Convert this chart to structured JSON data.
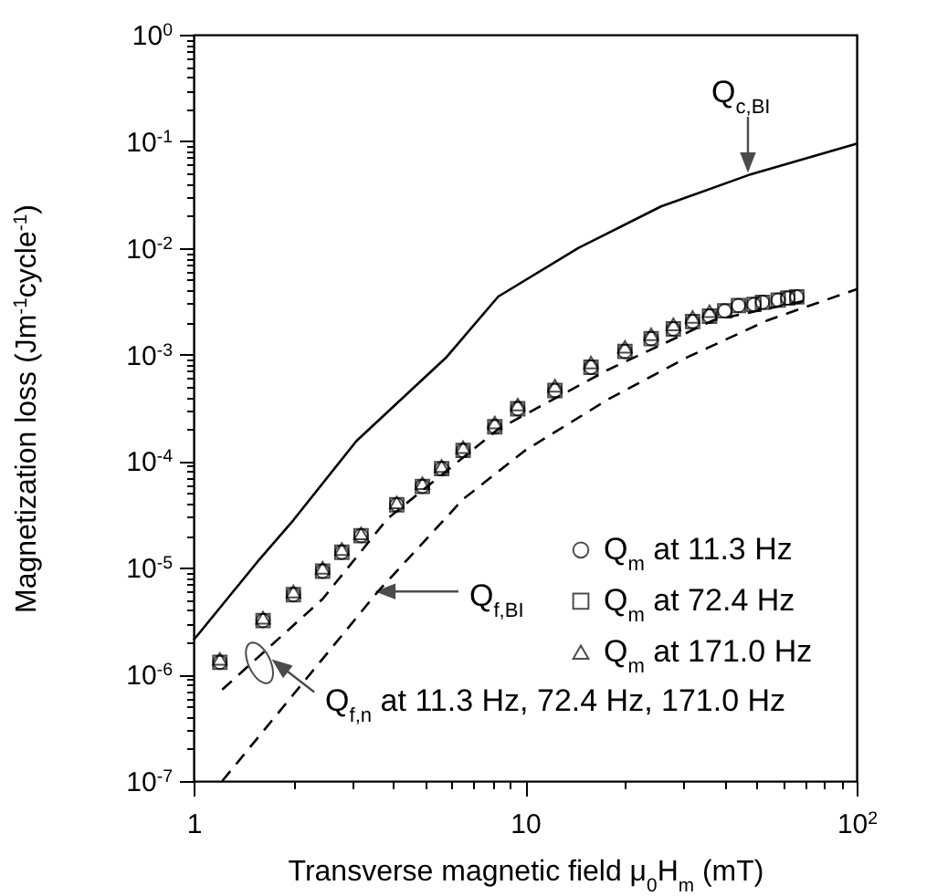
{
  "chart_data": {
    "type": "scatter",
    "xlabel": "Transverse magnetic field μ$_{0}$H$_{m}$ (mT)",
    "ylabel": "Magnetization loss (Jm$^{-1}$cycle$^{-1}$)",
    "log": "xy",
    "xlim": [
      1,
      100
    ],
    "ylim": [
      1e-07,
      1
    ],
    "xticks": [
      {
        "value": 1,
        "label": "1"
      },
      {
        "value": 2,
        "label": null
      },
      {
        "value": 3,
        "label": null
      },
      {
        "value": 4,
        "label": null
      },
      {
        "value": 5,
        "label": null
      },
      {
        "value": 6,
        "label": null
      },
      {
        "value": 7,
        "label": null
      },
      {
        "value": 8,
        "label": null
      },
      {
        "value": 9,
        "label": null
      },
      {
        "value": 10,
        "label": "10"
      },
      {
        "value": 20,
        "label": null
      },
      {
        "value": 30,
        "label": null
      },
      {
        "value": 40,
        "label": null
      },
      {
        "value": 50,
        "label": null
      },
      {
        "value": 60,
        "label": null
      },
      {
        "value": 70,
        "label": null
      },
      {
        "value": 80,
        "label": null
      },
      {
        "value": 90,
        "label": null
      },
      {
        "value": 100,
        "label": "10$^{2}$"
      }
    ],
    "yticks": [
      {
        "value": 1e-07,
        "label": "10$^{-7}$"
      },
      {
        "value": 2e-07,
        "label": null
      },
      {
        "value": 3e-07,
        "label": null
      },
      {
        "value": 4e-07,
        "label": null
      },
      {
        "value": 5e-07,
        "label": null
      },
      {
        "value": 6e-07,
        "label": null
      },
      {
        "value": 7e-07,
        "label": null
      },
      {
        "value": 8e-07,
        "label": null
      },
      {
        "value": 9e-07,
        "label": null
      },
      {
        "value": 1e-06,
        "label": "10$^{-6}$"
      },
      {
        "value": 2e-06,
        "label": null
      },
      {
        "value": 3e-06,
        "label": null
      },
      {
        "value": 4e-06,
        "label": null
      },
      {
        "value": 5e-06,
        "label": null
      },
      {
        "value": 6e-06,
        "label": null
      },
      {
        "value": 7e-06,
        "label": null
      },
      {
        "value": 8e-06,
        "label": null
      },
      {
        "value": 9e-06,
        "label": null
      },
      {
        "value": 1e-05,
        "label": "10$^{-5}$"
      },
      {
        "value": 2e-05,
        "label": null
      },
      {
        "value": 3e-05,
        "label": null
      },
      {
        "value": 4e-05,
        "label": null
      },
      {
        "value": 5e-05,
        "label": null
      },
      {
        "value": 6e-05,
        "label": null
      },
      {
        "value": 7e-05,
        "label": null
      },
      {
        "value": 8e-05,
        "label": null
      },
      {
        "value": 9e-05,
        "label": null
      },
      {
        "value": 0.0001,
        "label": "10$^{-4}$"
      },
      {
        "value": 0.0002,
        "label": null
      },
      {
        "value": 0.0003,
        "label": null
      },
      {
        "value": 0.0004,
        "label": null
      },
      {
        "value": 0.0005,
        "label": null
      },
      {
        "value": 0.0006,
        "label": null
      },
      {
        "value": 0.0007,
        "label": null
      },
      {
        "value": 0.0008,
        "label": null
      },
      {
        "value": 0.0009,
        "label": null
      },
      {
        "value": 0.001,
        "label": "10$^{-3}$"
      },
      {
        "value": 0.002,
        "label": null
      },
      {
        "value": 0.003,
        "label": null
      },
      {
        "value": 0.004,
        "label": null
      },
      {
        "value": 0.005,
        "label": null
      },
      {
        "value": 0.006,
        "label": null
      },
      {
        "value": 0.007,
        "label": null
      },
      {
        "value": 0.008,
        "label": null
      },
      {
        "value": 0.009,
        "label": null
      },
      {
        "value": 0.01,
        "label": "10$^{-2}$"
      },
      {
        "value": 0.02,
        "label": null
      },
      {
        "value": 0.03,
        "label": null
      },
      {
        "value": 0.04,
        "label": null
      },
      {
        "value": 0.05,
        "label": null
      },
      {
        "value": 0.06,
        "label": null
      },
      {
        "value": 0.07,
        "label": null
      },
      {
        "value": 0.08,
        "label": null
      },
      {
        "value": 0.09,
        "label": null
      },
      {
        "value": 0.1,
        "label": "10$^{-1}$"
      },
      {
        "value": 0.2,
        "label": null
      },
      {
        "value": 0.3,
        "label": null
      },
      {
        "value": 0.4,
        "label": null
      },
      {
        "value": 0.5,
        "label": null
      },
      {
        "value": 0.6,
        "label": null
      },
      {
        "value": 0.7,
        "label": null
      },
      {
        "value": 0.8,
        "label": null
      },
      {
        "value": 0.9,
        "label": null
      },
      {
        "value": 1,
        "label": "10$^{0}$"
      }
    ],
    "legend": "right",
    "series": [
      {
        "name": "Q$_{m}$ at 11.3 Hz",
        "marker": "circle",
        "color": "#000000",
        "x": [
          1.2,
          1.62,
          2.0,
          2.45,
          2.8,
          3.2,
          4.1,
          4.9,
          5.6,
          6.5,
          8.1,
          9.5,
          12.3,
          15.8,
          20,
          24,
          28,
          32,
          36,
          40,
          44,
          49,
          52,
          58,
          62,
          66
        ],
        "values": [
          1.3e-06,
          3.2e-06,
          5.6e-06,
          9.3e-06,
          1.4e-05,
          2e-05,
          3.9e-05,
          5.8e-05,
          8.5e-05,
          0.000126,
          0.00021,
          0.00031,
          0.00046,
          0.00076,
          0.00107,
          0.00141,
          0.00174,
          0.00204,
          0.00229,
          0.00257,
          0.00288,
          0.00295,
          0.00309,
          0.00324,
          0.00339,
          0.00347
        ]
      },
      {
        "name": "Q$_{m}$ at 72.4 Hz",
        "marker": "square",
        "color": "#000000",
        "x": [
          1.2,
          1.62,
          2.0,
          2.45,
          2.8,
          3.2,
          4.1,
          4.9,
          5.6,
          6.5,
          8.1,
          9.5,
          12.3,
          15.8,
          20,
          24,
          28,
          32,
          36,
          40,
          44,
          49,
          52,
          58,
          62,
          66
        ],
        "values": [
          1.3e-06,
          3.2e-06,
          5.6e-06,
          9.3e-06,
          1.4e-05,
          2e-05,
          3.9e-05,
          5.8e-05,
          8.5e-05,
          0.000126,
          0.00021,
          0.00031,
          0.00046,
          0.00076,
          0.00107,
          0.00141,
          0.00174,
          0.00204,
          0.00229,
          0.00257,
          0.00288,
          0.00295,
          0.00309,
          0.00324,
          0.00339,
          0.00347
        ]
      },
      {
        "name": "Q$_{m}$ at 171.0 Hz",
        "marker": "triangle",
        "color": "#000000",
        "x": [
          1.2,
          1.62,
          2.0,
          2.45,
          2.8,
          3.2,
          4.1,
          4.9,
          5.6,
          6.5,
          8.1,
          9.5,
          12.3,
          15.8,
          20,
          24,
          28,
          32,
          36
        ],
        "values": [
          1.4e-06,
          3.4e-06,
          6e-06,
          1e-05,
          1.5e-05,
          2.1e-05,
          4.1e-05,
          6.2e-05,
          9e-05,
          0.000135,
          0.00023,
          0.00034,
          0.00051,
          0.00084,
          0.00118,
          0.00155,
          0.00192,
          0.00225,
          0.00255
        ]
      },
      {
        "type": "line",
        "line_style": "solid",
        "color": "#000000",
        "x": [
          1,
          1.58,
          2,
          3.1,
          5.8,
          8.3,
          14.5,
          25.7,
          47,
          100
        ],
        "values": [
          2.1e-06,
          1.2e-05,
          2.8e-05,
          0.000155,
          0.00095,
          0.0035,
          0.01,
          0.0245,
          0.048,
          0.095
        ]
      },
      {
        "type": "line",
        "line_style": "dashed",
        "color": "#000000",
        "x": [
          1.22,
          2.45,
          3.85,
          8.3,
          17.8,
          37,
          70
        ],
        "values": [
          7.2e-07,
          5.1e-06,
          2.9e-05,
          0.0002,
          0.00072,
          0.0021,
          0.0032
        ]
      },
      {
        "type": "line",
        "line_style": "dashed",
        "color": "#000000",
        "x": [
          1.22,
          3.6,
          6.5,
          10,
          17.8,
          31,
          54,
          100
        ],
        "values": [
          1e-07,
          6e-06,
          4.4e-05,
          0.000126,
          0.00038,
          0.00095,
          0.0021,
          0.0041
        ]
      }
    ],
    "annotations": [
      {
        "text": "Q$_{c,BI}$",
        "x": 47,
        "y": 0.048
      },
      {
        "text": "Q$_{f,BI}$",
        "x": 3.6,
        "y": 6e-06
      },
      {
        "text": "Q$_{f,n}$ at 11.3 Hz,  72.4 Hz, 171.0 Hz",
        "x": 1.58,
        "y": 1.5e-06
      }
    ]
  }
}
